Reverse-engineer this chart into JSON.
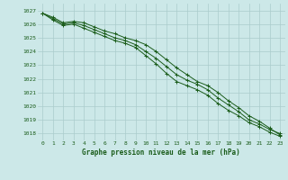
{
  "title": "Graphe pression niveau de la mer (hPa)",
  "background_color": "#cce8e8",
  "grid_color": "#aacccc",
  "line_color": "#1a5c1a",
  "x_labels": [
    "0",
    "1",
    "2",
    "3",
    "4",
    "5",
    "6",
    "7",
    "8",
    "9",
    "10",
    "11",
    "12",
    "13",
    "14",
    "15",
    "16",
    "17",
    "18",
    "19",
    "20",
    "21",
    "22",
    "23"
  ],
  "xlim": [
    -0.5,
    23.5
  ],
  "ylim": [
    1017.5,
    1027.5
  ],
  "yticks": [
    1018,
    1019,
    1020,
    1021,
    1022,
    1023,
    1024,
    1025,
    1026,
    1027
  ],
  "series": [
    [
      1026.8,
      1026.5,
      1026.1,
      1026.2,
      1026.1,
      1025.8,
      1025.5,
      1025.3,
      1025.0,
      1024.8,
      1024.5,
      1024.0,
      1023.4,
      1022.8,
      1022.3,
      1021.8,
      1021.5,
      1021.0,
      1020.4,
      1019.9,
      1019.3,
      1018.9,
      1018.4,
      1017.9
    ],
    [
      1026.8,
      1026.4,
      1026.0,
      1026.1,
      1025.9,
      1025.6,
      1025.3,
      1025.0,
      1024.8,
      1024.5,
      1024.0,
      1023.5,
      1022.9,
      1022.3,
      1021.9,
      1021.6,
      1021.2,
      1020.6,
      1020.1,
      1019.6,
      1019.0,
      1018.7,
      1018.3,
      1018.0
    ],
    [
      1026.8,
      1026.3,
      1025.9,
      1026.0,
      1025.7,
      1025.4,
      1025.1,
      1024.8,
      1024.6,
      1024.3,
      1023.7,
      1023.1,
      1022.4,
      1021.8,
      1021.5,
      1021.2,
      1020.8,
      1020.2,
      1019.7,
      1019.3,
      1018.8,
      1018.5,
      1018.1,
      1017.8
    ]
  ]
}
